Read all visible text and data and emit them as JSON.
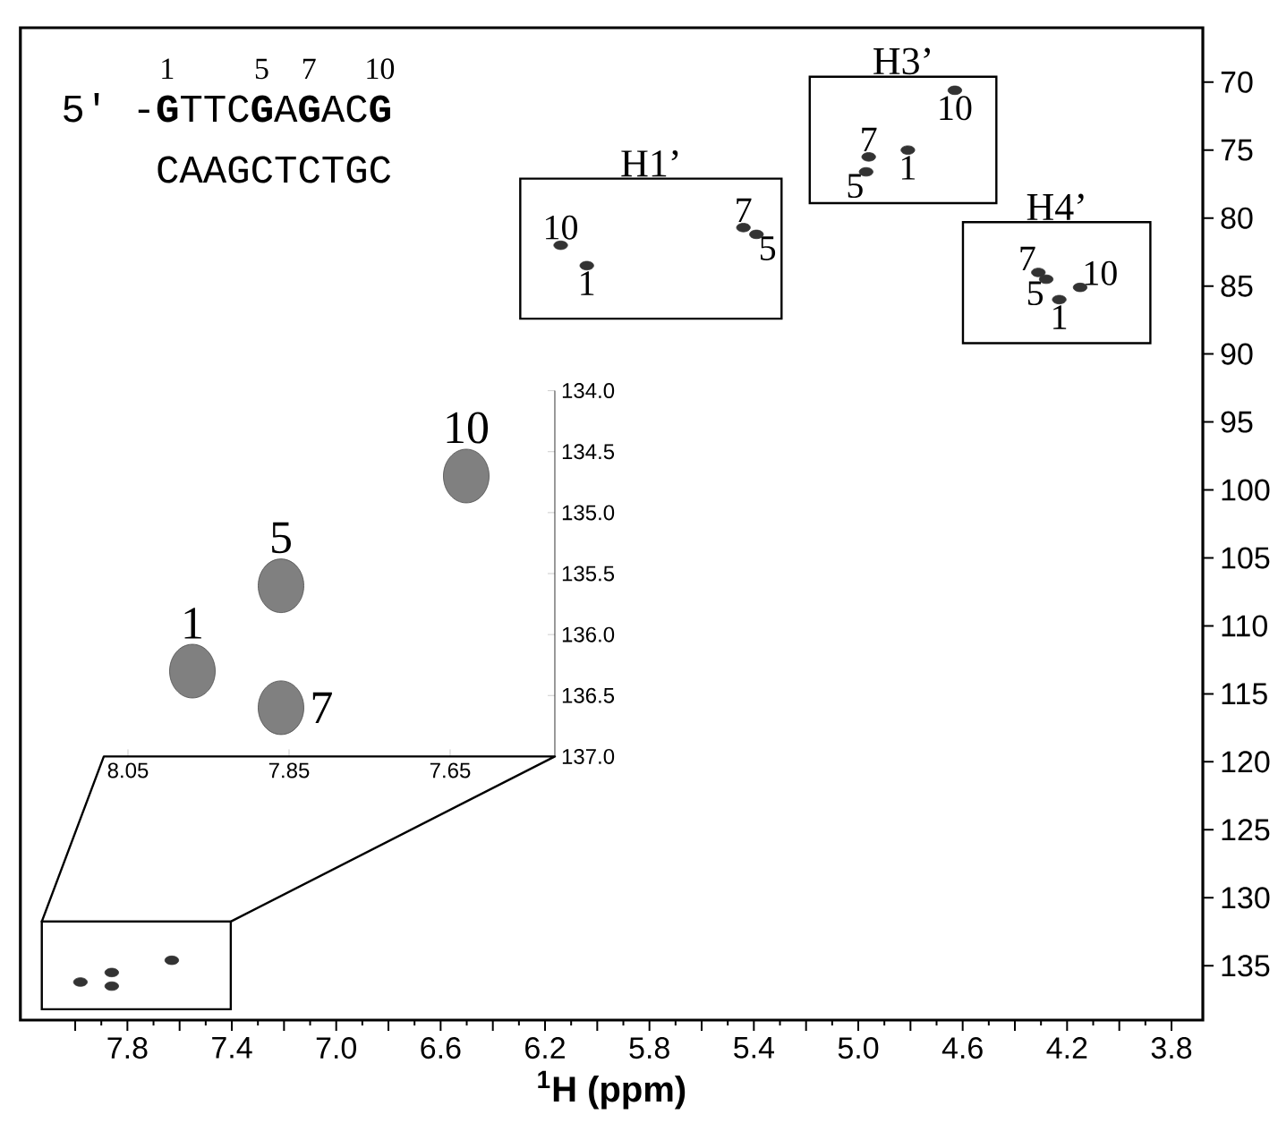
{
  "chart_data": [
    {
      "type": "scatter",
      "xlabel": "$^{1}$H (ppm)",
      "xlim": [
        8.21,
        3.68
      ],
      "ylim": [
        139,
        66
      ],
      "xticks": [
        {
          "value": 8.0,
          "label": null
        },
        7.8,
        {
          "value": 7.6,
          "label": null
        },
        7.4,
        {
          "value": 7.2,
          "label": null
        },
        {
          "value": 7,
          "label": "7.0"
        },
        {
          "value": 6.8,
          "label": null
        },
        6.6,
        {
          "value": 6.4,
          "label": null
        },
        6.2,
        {
          "value": 6.0,
          "label": null
        },
        5.8,
        {
          "value": 5.6,
          "label": null
        },
        5.4,
        {
          "value": 5.2,
          "label": null
        },
        {
          "value": 5,
          "label": "5.0"
        },
        {
          "value": 4.8,
          "label": null
        },
        4.6,
        {
          "value": 4.4,
          "label": null
        },
        4.2,
        {
          "value": 4.0,
          "label": null
        },
        3.8
      ],
      "yticks": [
        70,
        75,
        80,
        85,
        90,
        95,
        100,
        105,
        110,
        115,
        120,
        125,
        130,
        135
      ],
      "series": [
        {
          "name": "H1’",
          "color": "#333333",
          "x": [
            6.14,
            6.04,
            5.44,
            5.39
          ],
          "values": [
            82.0,
            83.5,
            80.7,
            81.2
          ]
        },
        {
          "name": "H3’",
          "color": "#333333",
          "x": [
            4.63,
            4.96,
            4.97,
            4.81
          ],
          "values": [
            70.6,
            75.5,
            76.6,
            75.0
          ]
        },
        {
          "name": "H4’",
          "color": "#333333",
          "x": [
            4.31,
            4.28,
            4.15,
            4.23
          ],
          "values": [
            84.0,
            84.5,
            85.1,
            86.0
          ]
        },
        {
          "color": "#333333",
          "x": [
            7.98,
            7.86,
            7.86,
            7.63
          ],
          "values": [
            136.2,
            135.5,
            136.5,
            134.6
          ]
        }
      ],
      "annotations": [
        "5′ -**G**TTC**G**A**G**AC**G**",
        "CAAGCTCTGC",
        "1",
        "5",
        "7",
        "10",
        {
          "text": "10",
          "x": 6.14,
          "y": 82.0
        },
        {
          "text": "1",
          "x": 6.04,
          "y": 83.5
        },
        {
          "text": "7",
          "x": 5.44,
          "y": 80.7
        },
        {
          "text": "5",
          "x": 5.39,
          "y": 81.2
        },
        {
          "text": "10",
          "x": 4.63,
          "y": 70.6
        },
        {
          "text": "7",
          "x": 4.96,
          "y": 75.5
        },
        {
          "text": "5",
          "x": 4.97,
          "y": 76.6
        },
        {
          "text": "1",
          "x": 4.81,
          "y": 75.0
        },
        {
          "text": "7",
          "x": 4.31,
          "y": 84.0
        },
        {
          "text": "5",
          "x": 4.28,
          "y": 84.5
        },
        {
          "text": "10",
          "x": 4.15,
          "y": 85.1
        },
        {
          "text": "1",
          "x": 4.23,
          "y": 86.0
        }
      ]
    },
    {
      "type": "scatter",
      "xlim": [
        8.08,
        7.52
      ],
      "ylim": [
        137,
        134
      ],
      "xticks": [
        8.05,
        7.85,
        7.65
      ],
      "yticks": [
        {
          "value": 134,
          "label": "134.0"
        },
        {
          "value": 134.5,
          "label": "134.5"
        },
        {
          "value": 135,
          "label": "135.0"
        },
        {
          "value": 135.5,
          "label": "135.5"
        },
        {
          "value": 136,
          "label": "136.0"
        },
        {
          "value": 136.5,
          "label": "136.5"
        },
        {
          "value": 137,
          "label": "137.0"
        }
      ],
      "series": [
        {
          "color": "#808080",
          "x": [
            7.97,
            7.86,
            7.86,
            7.63
          ],
          "values": [
            136.3,
            135.6,
            136.6,
            134.7
          ]
        }
      ],
      "annotations": [
        {
          "text": "1",
          "x": 7.97,
          "y": 136.3
        },
        {
          "text": "5",
          "x": 7.86,
          "y": 135.6
        },
        {
          "text": "7",
          "x": 7.86,
          "y": 136.6
        },
        {
          "text": "10",
          "x": 7.63,
          "y": 134.7
        }
      ]
    }
  ]
}
